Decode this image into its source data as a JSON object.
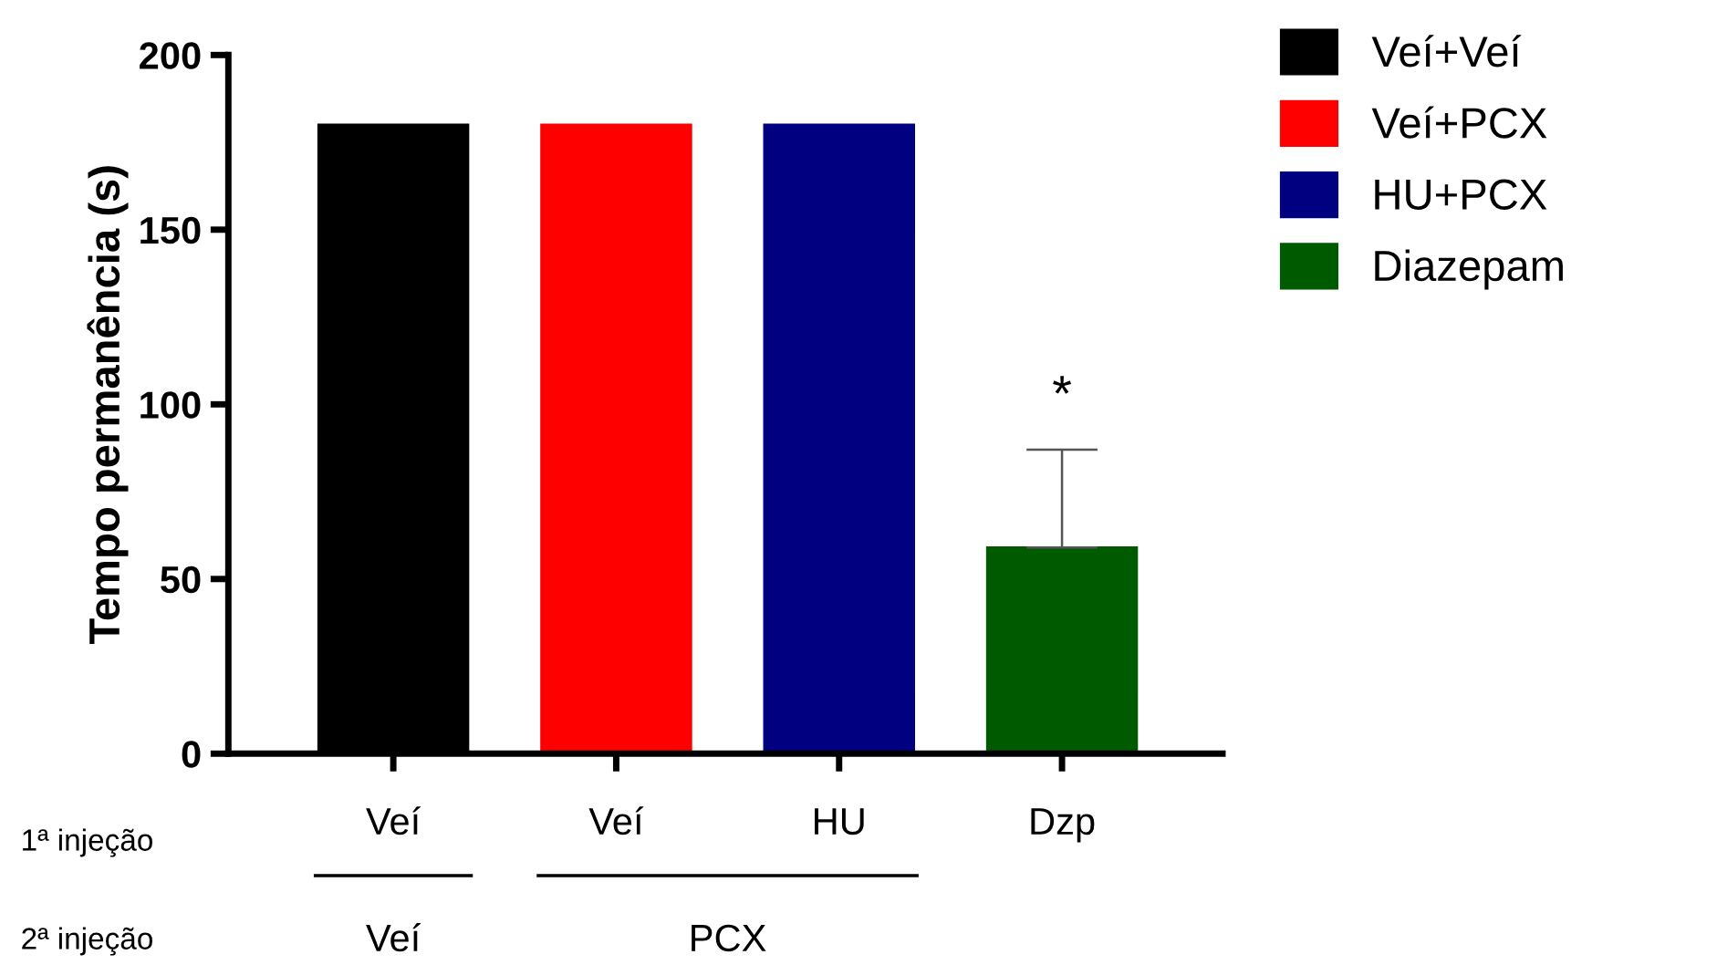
{
  "chart_data": {
    "type": "bar",
    "ylabel": "Tempo permanência (s)",
    "categories": [
      "Veí",
      "Veí",
      "HU",
      "Dzp"
    ],
    "series": [
      {
        "name": "Veí+Veí",
        "color": "#000000",
        "values": [
          180,
          null,
          null,
          null
        ]
      },
      {
        "name": "Veí+PCX",
        "color": "#ff0000",
        "values": [
          null,
          180,
          null,
          null
        ]
      },
      {
        "name": "HU+PCX",
        "color": "#000080",
        "values": [
          null,
          null,
          180,
          null
        ]
      },
      {
        "name": "Diazepam",
        "color": "#005a00",
        "values": [
          null,
          null,
          null,
          59
        ],
        "errors": [
          null,
          null,
          null,
          [
            59,
            87
          ]
        ]
      }
    ],
    "ylim": [
      0,
      200
    ],
    "yticks": [
      0,
      50,
      100,
      150,
      200
    ],
    "grid": false,
    "legend": "right",
    "annotations": [
      "*",
      "1ª injeção",
      "2ª injeção",
      "Veí",
      "PCX"
    ]
  }
}
